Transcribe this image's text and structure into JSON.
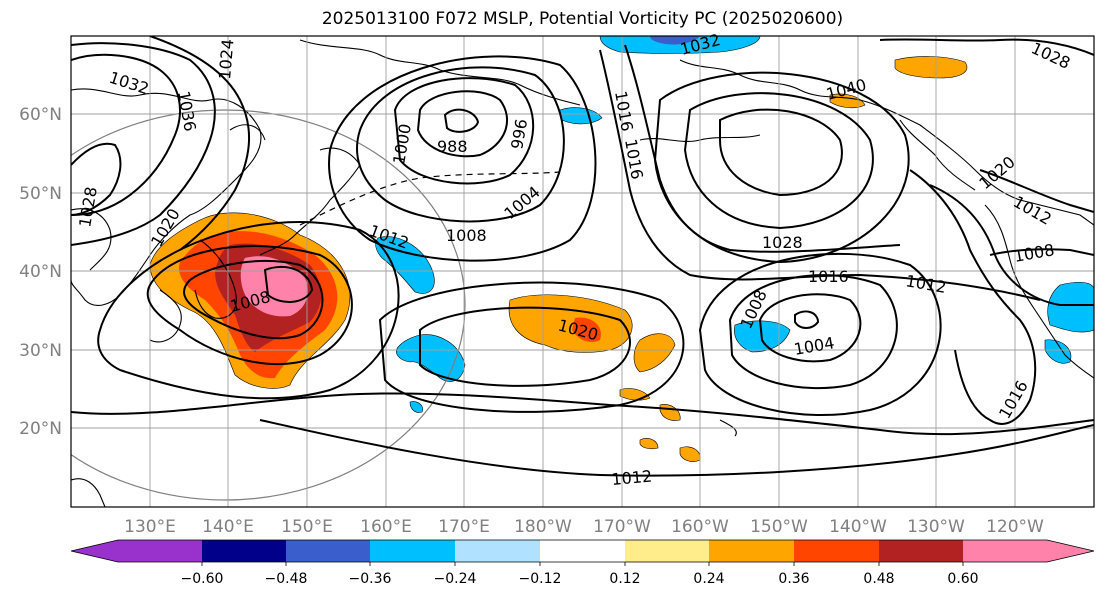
{
  "title": "2025013100 F072 MSLP, Potential Vorticity PC (2025020600)",
  "map": {
    "lat_labels": [
      "60°N",
      "50°N",
      "40°N",
      "30°N",
      "20°N"
    ],
    "lon_labels": [
      "130°E",
      "140°E",
      "150°E",
      "160°E",
      "170°E",
      "180°W",
      "170°W",
      "160°W",
      "150°W",
      "140°W",
      "130°W",
      "120°W"
    ],
    "isobar_labels": [
      "1032",
      "1036",
      "1024",
      "1028",
      "1020",
      "1008",
      "1012",
      "988",
      "996",
      "1000",
      "1004",
      "1008",
      "1020",
      "1016",
      "1032",
      "1028",
      "1040",
      "1016",
      "1028",
      "1016",
      "1012",
      "1008",
      "1004",
      "1020",
      "1008",
      "1012",
      "1016",
      "1012"
    ]
  },
  "colorbar": {
    "ticks": [
      "−0.60",
      "−0.48",
      "−0.36",
      "−0.24",
      "−0.12",
      "0.12",
      "0.24",
      "0.36",
      "0.48",
      "0.60"
    ],
    "colors": [
      "#9932cc",
      "#00008b",
      "#3a5fcd",
      "#00bfff",
      "#b0e2ff",
      "#ffffff",
      "#ffec8b",
      "#ffa500",
      "#ff4500",
      "#b22222",
      "#ff82ab"
    ]
  }
}
